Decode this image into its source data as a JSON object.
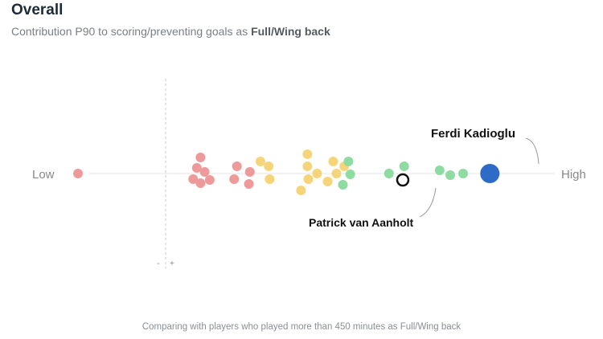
{
  "header": {
    "title": "Overall",
    "subtitle_prefix": "Contribution P90 to scoring/preventing goals as ",
    "subtitle_position": "Full/Wing back"
  },
  "footer": {
    "note": "Comparing with players who played more than 450 minutes as Full/Wing back"
  },
  "colors": {
    "low": "#ef9a9a",
    "mid": "#f6d57a",
    "high": "#8fdca3",
    "highlight": "#2e6bc7",
    "axis": "#e6e6e6",
    "zero_line": "#c8c8c8",
    "label": "#888888"
  },
  "chart_data": {
    "type": "beeswarm",
    "title": "Overall",
    "subtitle": "Contribution P90 to scoring/preventing goals as Full/Wing back",
    "axis_low_label": "Low",
    "axis_high_label": "High",
    "zero_marker": {
      "minus": "-",
      "plus": "+"
    },
    "xlim": [
      0,
      1
    ],
    "points": [
      {
        "x": 0.0,
        "o": 0,
        "cat": "low"
      },
      {
        "x": 0.266,
        "o": -20,
        "cat": "low"
      },
      {
        "x": 0.258,
        "o": -7,
        "cat": "low"
      },
      {
        "x": 0.275,
        "o": -2,
        "cat": "low"
      },
      {
        "x": 0.25,
        "o": 7,
        "cat": "low"
      },
      {
        "x": 0.266,
        "o": 12,
        "cat": "low"
      },
      {
        "x": 0.286,
        "o": 8,
        "cat": "low"
      },
      {
        "x": 0.345,
        "o": -9,
        "cat": "low"
      },
      {
        "x": 0.339,
        "o": 7,
        "cat": "low"
      },
      {
        "x": 0.373,
        "o": -2,
        "cat": "low"
      },
      {
        "x": 0.371,
        "o": 13,
        "cat": "low"
      },
      {
        "x": 0.396,
        "o": -15,
        "cat": "mid"
      },
      {
        "x": 0.414,
        "o": -9,
        "cat": "mid"
      },
      {
        "x": 0.416,
        "o": 7,
        "cat": "mid"
      },
      {
        "x": 0.498,
        "o": -24,
        "cat": "mid"
      },
      {
        "x": 0.498,
        "o": -9,
        "cat": "mid"
      },
      {
        "x": 0.5,
        "o": 7,
        "cat": "mid"
      },
      {
        "x": 0.484,
        "o": 21,
        "cat": "mid"
      },
      {
        "x": 0.519,
        "o": 0,
        "cat": "mid"
      },
      {
        "x": 0.554,
        "o": -15,
        "cat": "mid"
      },
      {
        "x": 0.561,
        "o": 0,
        "cat": "mid"
      },
      {
        "x": 0.542,
        "o": 10,
        "cat": "mid"
      },
      {
        "x": 0.578,
        "o": -9,
        "cat": "mid"
      },
      {
        "x": 0.587,
        "o": -15,
        "cat": "high"
      },
      {
        "x": 0.591,
        "o": 1,
        "cat": "high"
      },
      {
        "x": 0.575,
        "o": 14,
        "cat": "high"
      },
      {
        "x": 0.675,
        "o": 0,
        "cat": "high"
      },
      {
        "x": 0.708,
        "o": -9,
        "cat": "high"
      },
      {
        "x": 0.785,
        "o": -4,
        "cat": "high"
      },
      {
        "x": 0.808,
        "o": 2,
        "cat": "high"
      },
      {
        "x": 0.836,
        "o": 0,
        "cat": "high"
      }
    ],
    "highlighted": [
      {
        "name": "Ferdi Kadioglu",
        "x": 0.894,
        "o": 0,
        "style": "filled"
      },
      {
        "name": "Patrick van Aanholt",
        "x": 0.705,
        "o": 8,
        "style": "ring"
      }
    ]
  }
}
